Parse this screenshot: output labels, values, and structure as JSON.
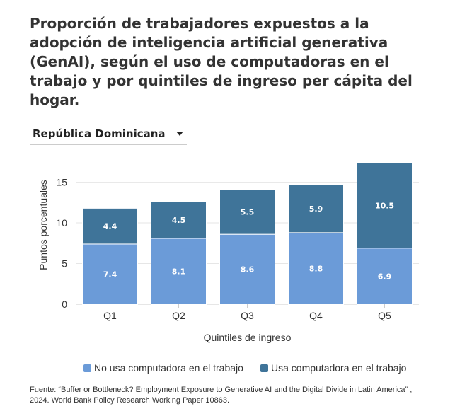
{
  "title": "Proporción de trabajadores expuestos a la adopción de inteligencia artificial generativa (GenAI), según el uso de computadoras en el trabajo y por quintiles de ingreso per cápita del hogar.",
  "dropdown": {
    "selected": "República Dominicana",
    "icon": "chevron-down-icon"
  },
  "colors": {
    "no_computer": "#6b9bd8",
    "computer": "#3f7499",
    "gridline": "#e6e6e6",
    "axis": "#cccccc"
  },
  "chart_data": {
    "type": "bar",
    "stacked": true,
    "categories": [
      "Q1",
      "Q2",
      "Q3",
      "Q4",
      "Q5"
    ],
    "series": [
      {
        "name": "No usa computadora en el trabajo",
        "values": [
          7.4,
          8.1,
          8.6,
          8.8,
          6.9
        ]
      },
      {
        "name": "Usa computadora en el trabajo",
        "values": [
          4.4,
          4.5,
          5.5,
          5.9,
          10.5
        ]
      }
    ],
    "title": "",
    "xlabel": "Quintiles de ingreso",
    "ylabel": "Puntos porcentuales",
    "ylim": [
      0,
      17.4
    ],
    "yticks": [
      0,
      5,
      10,
      15
    ],
    "grid": true,
    "legend_position": "bottom",
    "data_labels": true
  },
  "legend": [
    {
      "label": "No usa computadora en el trabajo"
    },
    {
      "label": "Usa computadora en el trabajo"
    }
  ],
  "source": {
    "prefix": "Fuente: ",
    "link_text": "“Buffer or Bottleneck? Employment Exposure to Generative AI and the Digital Divide in Latin America”",
    "suffix": " , 2024. World Bank Policy Research Working Paper 10863."
  }
}
